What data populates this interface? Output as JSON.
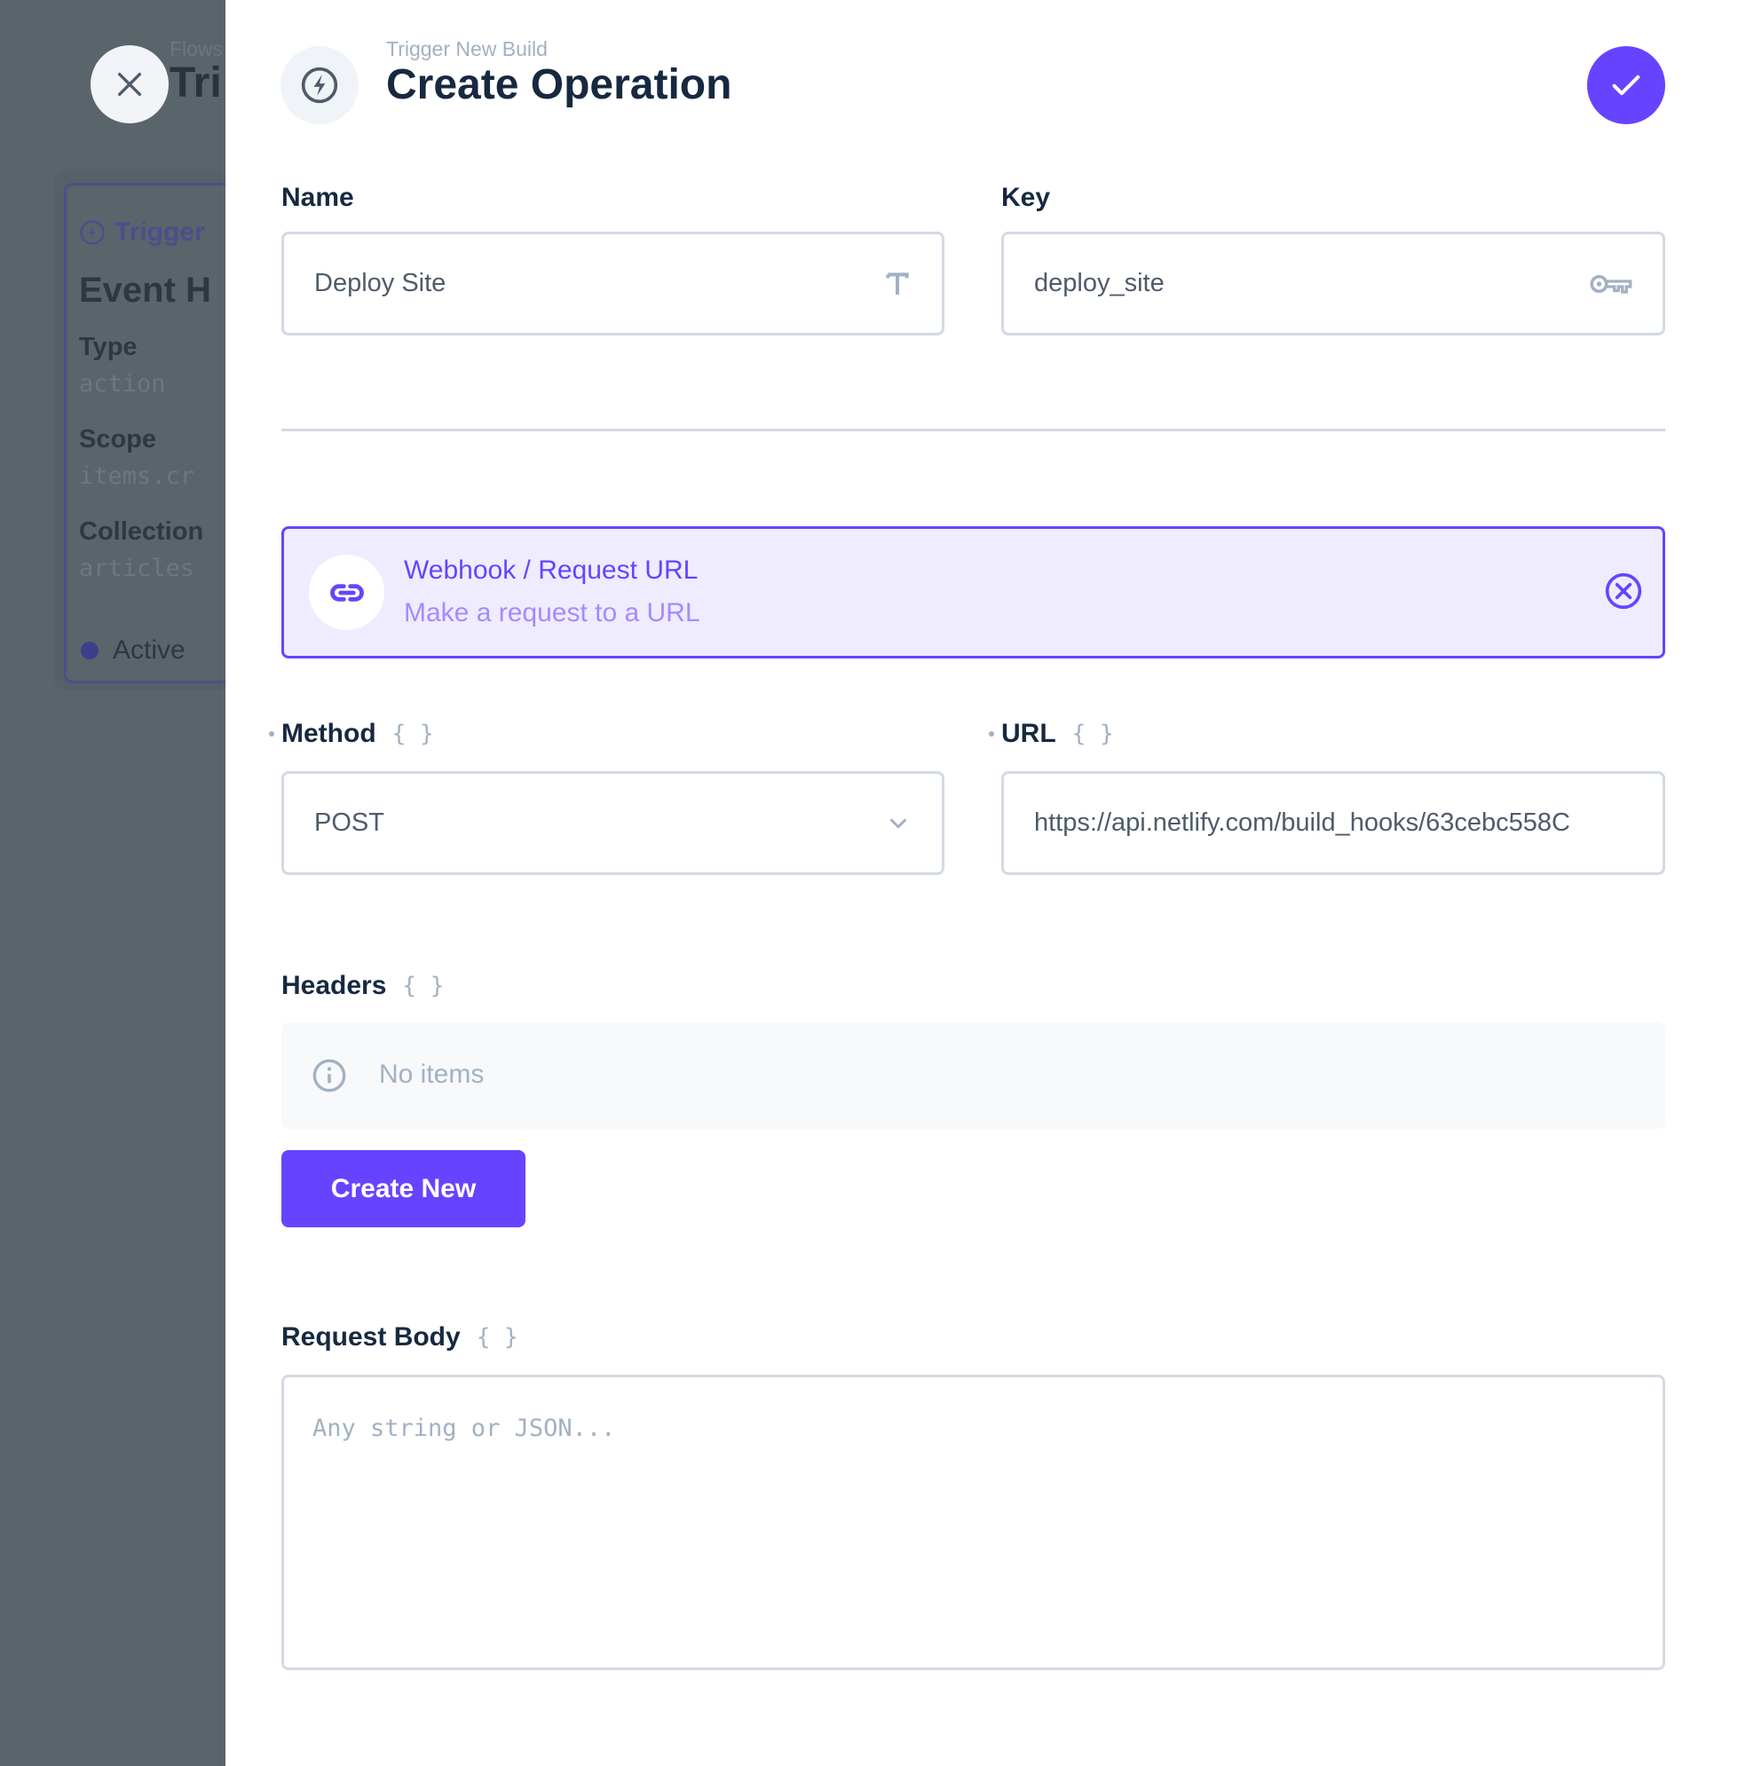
{
  "colors": {
    "accent": "#6644ff",
    "accent_bg": "#f0ecff",
    "text": "#172940",
    "muted": "#a2b1c3",
    "border": "#d3dae4"
  },
  "backdrop": {
    "breadcrumb": "Flows",
    "title": "Tri",
    "card": {
      "trigger_label": "Trigger",
      "heading": "Event H",
      "fields": [
        {
          "label": "Type",
          "value": "action"
        },
        {
          "label": "Scope",
          "value": "items.cr"
        },
        {
          "label": "Collection",
          "value": "articles"
        }
      ],
      "status": "Active"
    }
  },
  "header": {
    "subtitle": "Trigger New Build",
    "title": "Create Operation",
    "icon": "bolt-icon"
  },
  "form": {
    "name": {
      "label": "Name",
      "value": "Deploy Site",
      "icon": "text-icon"
    },
    "key": {
      "label": "Key",
      "value": "deploy_site",
      "icon": "key-icon"
    },
    "operation": {
      "title": "Webhook / Request URL",
      "description": "Make a request to a URL",
      "icon": "link-icon"
    },
    "method": {
      "label": "Method",
      "value": "POST",
      "required": true
    },
    "url": {
      "label": "URL",
      "value": "https://api.netlify.com/build_hooks/63cebc558C",
      "required": true
    },
    "headers": {
      "label": "Headers",
      "empty_text": "No items",
      "create_label": "Create New"
    },
    "body": {
      "label": "Request Body",
      "placeholder": "Any string or JSON..."
    },
    "braces": "{ }"
  }
}
